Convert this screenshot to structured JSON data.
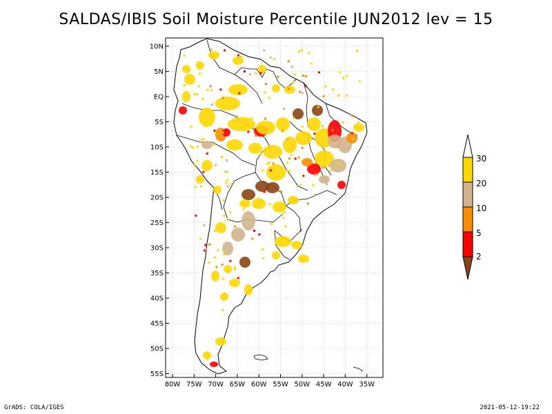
{
  "title": "SALDAS/IBIS Soil Moisture Percentile JUN2012 lev = 15",
  "map": {
    "lat_labels": [
      "10N",
      "5N",
      "EQ",
      "5S",
      "10S",
      "15S",
      "20S",
      "25S",
      "30S",
      "35S",
      "40S",
      "45S",
      "50S",
      "55S"
    ],
    "lon_labels": [
      "80W",
      "75W",
      "70W",
      "65W",
      "60W",
      "55W",
      "50W",
      "45W",
      "40W",
      "35W"
    ],
    "lat_range": [
      -56,
      11
    ],
    "lon_range": [
      -81,
      -33
    ]
  },
  "legend": {
    "labels": [
      "30",
      "20",
      "10",
      "5",
      "2"
    ],
    "colors": {
      "above30": "#ffffff",
      "20_30": "#ffd700",
      "10_20": "#d2b48c",
      "5_10": "#ff8c00",
      "2_5": "#ff0000",
      "below2": "#8b4513"
    }
  },
  "footer": {
    "left": "GrADS: COLA/IGES",
    "right": "2021-05-12-19:22"
  }
}
